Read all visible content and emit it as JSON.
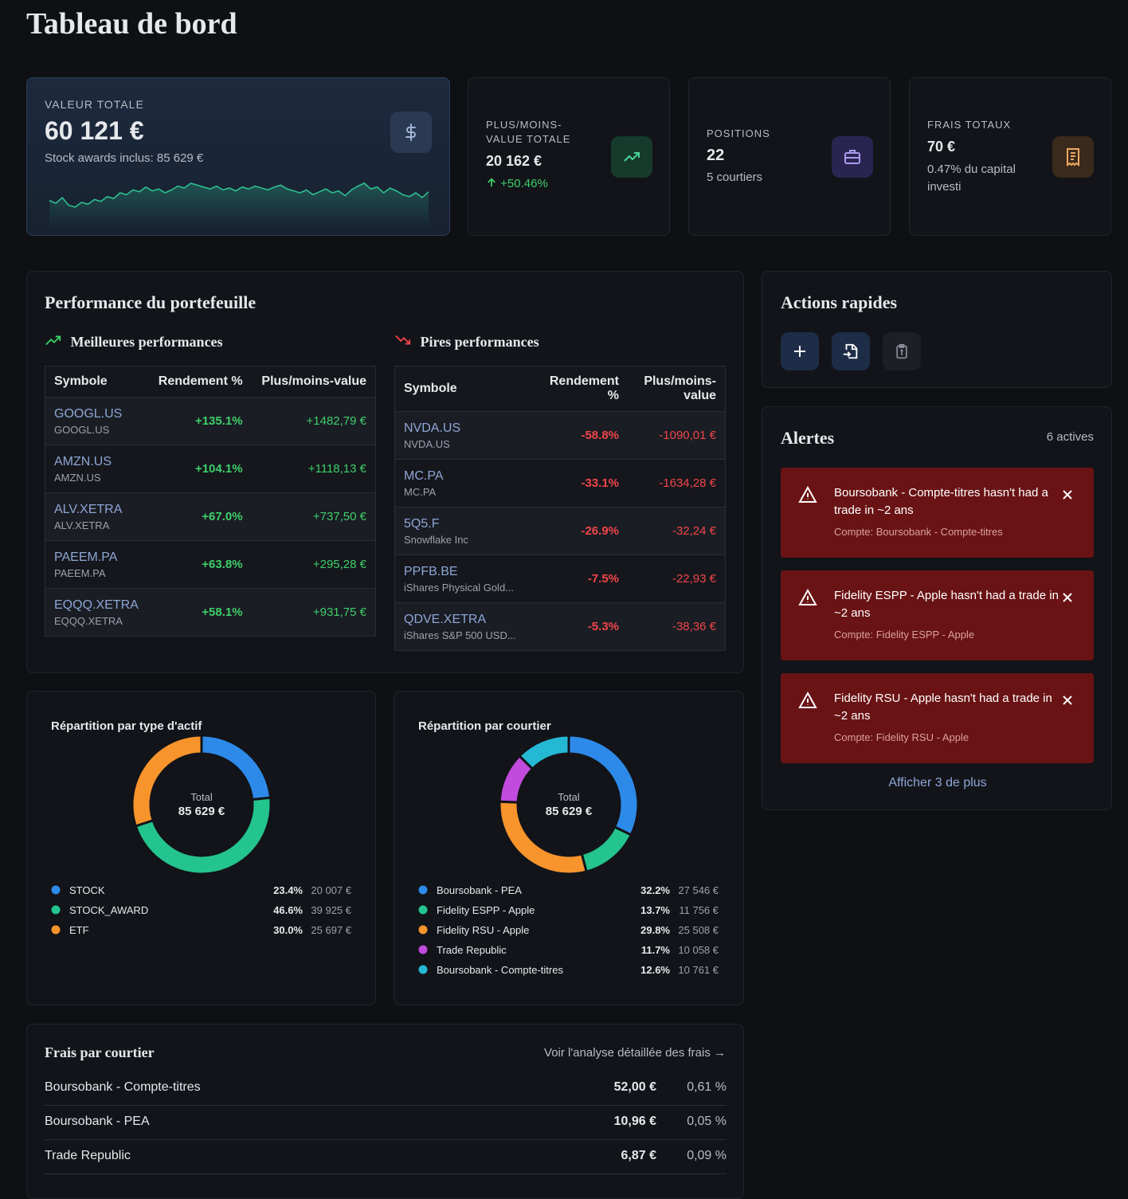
{
  "header": {
    "title": "Tableau de bord"
  },
  "kpis": {
    "total": {
      "label": "VALEUR TOTALE",
      "value": "60 121 €",
      "sub": "Stock awards inclus: 85 629 €"
    },
    "gain": {
      "label": "PLUS/MOINS-VALUE TOTALE",
      "value": "20 162 €",
      "change": "+50.46%"
    },
    "positions": {
      "label": "POSITIONS",
      "value": "22",
      "sub": "5 courtiers"
    },
    "fees": {
      "label": "FRAIS TOTAUX",
      "value": "70 €",
      "sub": "0.47% du capital investi"
    }
  },
  "performance": {
    "title": "Performance du portefeuille",
    "best": {
      "title": "Meilleures performances",
      "columns": [
        "Symbole",
        "Rendement %",
        "Plus/moins-value"
      ],
      "rows": [
        {
          "symbol": "GOOGL.US",
          "name": "GOOGL.US",
          "return": "+135.1%",
          "gain": "+1482,79 €"
        },
        {
          "symbol": "AMZN.US",
          "name": "AMZN.US",
          "return": "+104.1%",
          "gain": "+1118,13 €"
        },
        {
          "symbol": "ALV.XETRA",
          "name": "ALV.XETRA",
          "return": "+67.0%",
          "gain": "+737,50 €"
        },
        {
          "symbol": "PAEEM.PA",
          "name": "PAEEM.PA",
          "return": "+63.8%",
          "gain": "+295,28 €"
        },
        {
          "symbol": "EQQQ.XETRA",
          "name": "EQQQ.XETRA",
          "return": "+58.1%",
          "gain": "+931,75 €"
        }
      ]
    },
    "worst": {
      "title": "Pires performances",
      "columns": [
        "Symbole",
        "Rendement %",
        "Plus/moins-value"
      ],
      "rows": [
        {
          "symbol": "NVDA.US",
          "name": "NVDA.US",
          "return": "-58.8%",
          "gain": "-1090,01 €"
        },
        {
          "symbol": "MC.PA",
          "name": "MC.PA",
          "return": "-33.1%",
          "gain": "-1634,28 €"
        },
        {
          "symbol": "5Q5.F",
          "name": "Snowflake Inc",
          "return": "-26.9%",
          "gain": "-32,24 €"
        },
        {
          "symbol": "PPFB.BE",
          "name": "iShares Physical Gold...",
          "return": "-7.5%",
          "gain": "-22,93 €"
        },
        {
          "symbol": "QDVE.XETRA",
          "name": "iShares S&P 500 USD...",
          "return": "-5.3%",
          "gain": "-38,36 €"
        }
      ]
    }
  },
  "quick_actions": {
    "title": "Actions rapides"
  },
  "alerts": {
    "title": "Alertes",
    "count": "6 actives",
    "items": [
      {
        "message": "Boursobank - Compte-titres hasn't had a trade in ~2 ans",
        "account": "Compte: Boursobank - Compte-titres"
      },
      {
        "message": "Fidelity ESPP - Apple hasn't had a trade in ~2 ans",
        "account": "Compte: Fidelity ESPP - Apple"
      },
      {
        "message": "Fidelity RSU - Apple hasn't had a trade in ~2 ans",
        "account": "Compte: Fidelity RSU - Apple"
      }
    ],
    "more": "Afficher 3 de plus"
  },
  "fees": {
    "title": "Frais par courtier",
    "link": "Voir l'analyse détaillée des frais →",
    "rows": [
      {
        "broker": "Boursobank - Compte-titres",
        "amount": "52,00 €",
        "pct": "0,61 %"
      },
      {
        "broker": "Boursobank - PEA",
        "amount": "10,96 €",
        "pct": "0,05 %"
      },
      {
        "broker": "Trade Republic",
        "amount": "6,87 €",
        "pct": "0,09 %"
      }
    ]
  },
  "chart_data": [
    {
      "type": "line",
      "color": "#2fbf8f",
      "values": [
        52,
        49,
        55,
        47,
        45,
        50,
        48,
        53,
        51,
        56,
        54,
        60,
        58,
        63,
        61,
        66,
        62,
        64,
        60,
        63,
        67,
        65,
        70,
        68,
        66,
        64,
        67,
        63,
        65,
        62,
        66,
        64,
        67,
        65,
        63,
        66,
        68,
        64,
        62,
        60,
        63,
        58,
        61,
        64,
        60,
        62,
        57,
        63,
        67,
        70,
        64,
        66,
        60,
        65,
        62,
        58,
        56,
        60,
        55,
        61
      ]
    },
    {
      "type": "pie",
      "title": "Répartition par type d'actif",
      "center_label": "Total",
      "center_value": "85 629 €",
      "categories": [
        "STOCK",
        "STOCK_AWARD",
        "ETF"
      ],
      "values": [
        23.4,
        46.6,
        30.0
      ],
      "value_labels": [
        "23.4%",
        "46.6%",
        "30.0%"
      ],
      "amount_labels": [
        "20 007 €",
        "39 925 €",
        "25 697 €"
      ],
      "colors": [
        "#2d8ae8",
        "#24c48e",
        "#f7942c"
      ]
    },
    {
      "type": "pie",
      "title": "Répartition par courtier",
      "center_label": "Total",
      "center_value": "85 629 €",
      "categories": [
        "Boursobank - PEA",
        "Fidelity ESPP - Apple",
        "Fidelity RSU - Apple",
        "Trade Republic",
        "Boursobank - Compte-titres"
      ],
      "values": [
        32.2,
        13.7,
        29.8,
        11.7,
        12.6
      ],
      "value_labels": [
        "32.2%",
        "13.7%",
        "29.8%",
        "11.7%",
        "12.6%"
      ],
      "amount_labels": [
        "27 546 €",
        "11 756 €",
        "25 508 €",
        "10 058 €",
        "10 761 €"
      ],
      "colors": [
        "#2d8ae8",
        "#24c48e",
        "#f7942c",
        "#c04bdc",
        "#25b8d4"
      ]
    }
  ]
}
